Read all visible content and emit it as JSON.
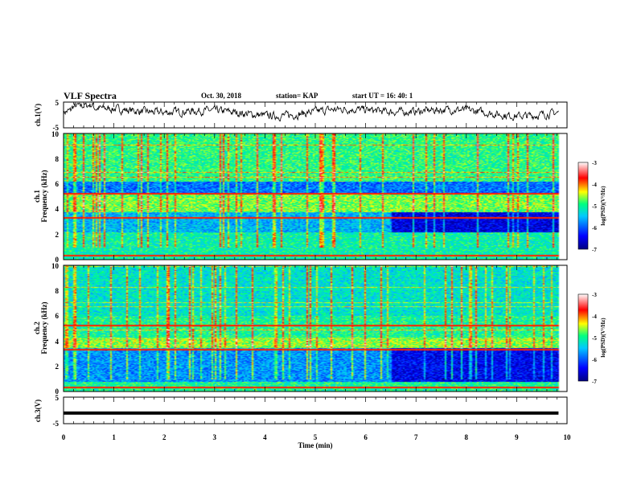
{
  "header": {
    "title": "VLF Spectra",
    "date": "Oct. 30, 2018",
    "station": "station= KAP",
    "start": "start  UT  =   16: 40: 1"
  },
  "colors": {
    "trace": "#000000",
    "colormap": [
      "#000080",
      "#0000ff",
      "#00c8ff",
      "#00ff80",
      "#ffff00",
      "#ff0000",
      "#ffffff"
    ]
  },
  "chart_data": [
    {
      "type": "line",
      "title": "",
      "ylabel": "ch.1(V)",
      "xlim": [
        0,
        10
      ],
      "ylim": [
        -5,
        5
      ],
      "yticks": [
        "5",
        "-5"
      ],
      "duration_min": 9.83,
      "summary": "noisy waveform oscillating roughly between -2 and +4 V"
    },
    {
      "type": "heatmap",
      "ylabel": "ch.1",
      "ylabel2": "Frequency  (kHz)",
      "xlim": [
        0,
        10
      ],
      "ylim": [
        0,
        10
      ],
      "yticks": [
        "0",
        "2",
        "4",
        "6",
        "8",
        "10"
      ],
      "colorbar": {
        "label": "log(PSD)(V²/Hz)",
        "range": [
          -7,
          -3
        ],
        "ticks": [
          "-3",
          "-4",
          "-5",
          "-6",
          "-7"
        ]
      }
    },
    {
      "type": "heatmap",
      "ylabel": "ch.2",
      "ylabel2": "Frequency  (kHz)",
      "xlim": [
        0,
        10
      ],
      "ylim": [
        0,
        10
      ],
      "yticks": [
        "0",
        "2",
        "4",
        "6",
        "8",
        "10"
      ],
      "colorbar": {
        "label": "log(PSD)(V²/Hz)",
        "range": [
          -7,
          -3
        ],
        "ticks": [
          "-3",
          "-4",
          "-5",
          "-6",
          "-7"
        ]
      }
    },
    {
      "type": "line",
      "ylabel": "ch.3(V)",
      "xlim": [
        0,
        10
      ],
      "ylim": [
        -5,
        5
      ],
      "yticks": [
        "5",
        "-5"
      ],
      "value": -1,
      "xlabel": "Time  (min)",
      "xticks": [
        "0",
        "1",
        "2",
        "3",
        "4",
        "5",
        "6",
        "7",
        "8",
        "9",
        "10"
      ]
    }
  ]
}
